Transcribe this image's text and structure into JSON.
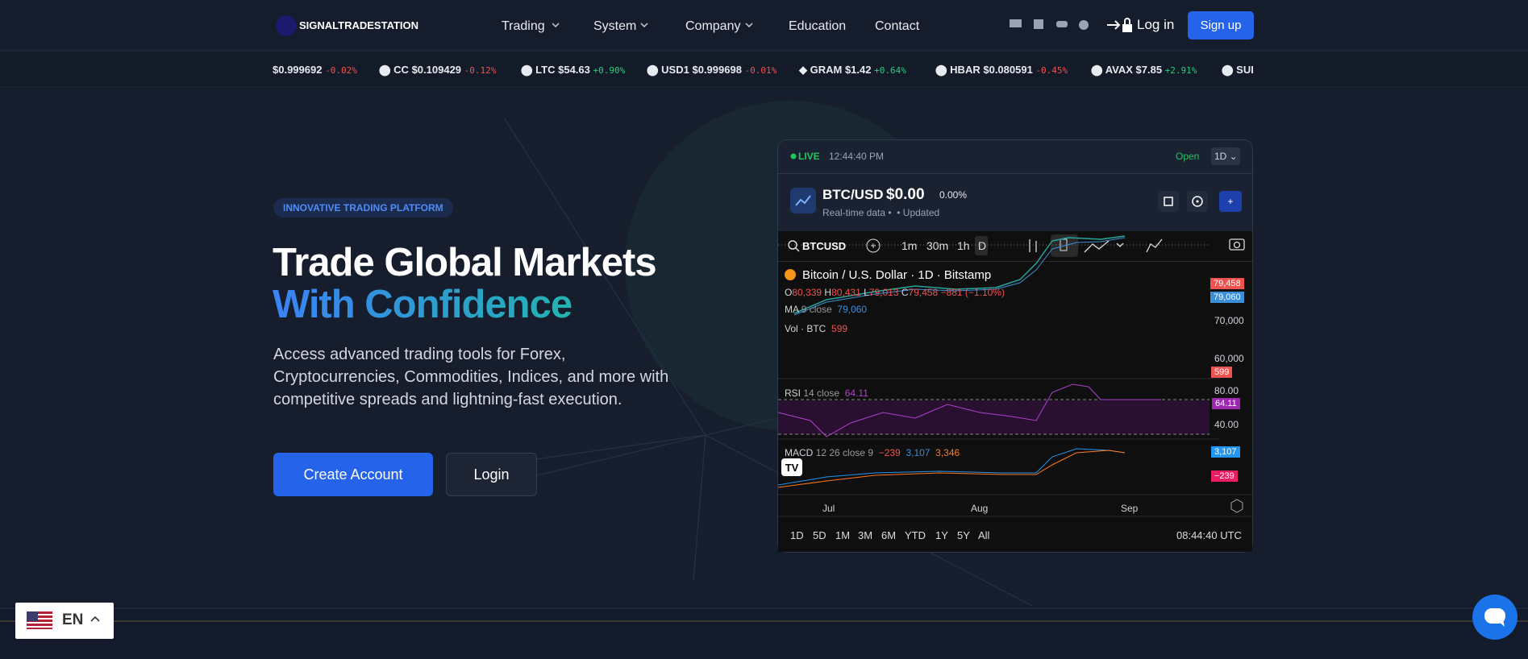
{
  "header": {
    "logo": "SIGNALTRADESTATION",
    "nav": [
      "Trading",
      "System",
      "Company",
      "Education",
      "Contact"
    ],
    "login": "Log in",
    "signup": "Sign up"
  },
  "ticker": [
    {
      "symbol": "",
      "price": "$0.999692",
      "change": "-0.02%"
    },
    {
      "symbol": "CC",
      "price": "$0.109429",
      "change": "-0.12%"
    },
    {
      "symbol": "LTC",
      "price": "$54.63",
      "change": "+0.90%"
    },
    {
      "symbol": "USD1",
      "price": "$0.999698",
      "change": "-0.01%"
    },
    {
      "symbol": "GRAM",
      "price": "$1.42",
      "change": "+0.64%"
    },
    {
      "symbol": "HBAR",
      "price": "$0.080591",
      "change": "-0.45%"
    },
    {
      "symbol": "AVAX",
      "price": "$7.85",
      "change": "+2.91%"
    },
    {
      "symbol": "SUI",
      "price": "",
      "change": ""
    }
  ],
  "hero": {
    "badge": "INNOVATIVE TRADING PLATFORM",
    "title_line1": "Trade Global Markets",
    "title_line2": "With Confidence",
    "description": "Access advanced trading tools for Forex, Cryptocurrencies, Commodities, Indices, and more with competitive spreads and lightning-fast execution.",
    "primary_button": "Create Account",
    "secondary_button": "Login"
  },
  "widget": {
    "live": "LIVE",
    "time": "12:44:40 PM",
    "status": "Open",
    "interval": "1D",
    "pair": "BTC/USD",
    "price": "$0.00",
    "change": "0.00%",
    "subtitle": "Real-time data",
    "updated": "Updated",
    "search": "BTCUSD",
    "intervals": [
      "1m",
      "30m",
      "1h",
      "D"
    ],
    "legend": "Bitcoin / U.S. Dollar · 1D · Bitstamp",
    "ohlc": {
      "o_label": "O",
      "o": "80,339",
      "h_label": "H",
      "h": "80,431",
      "l_label": "L",
      "l": "79,013",
      "c_label": "C",
      "c": "79,458",
      "change": "−881 (−1.10%)"
    },
    "ma_label": "MA",
    "ma_params": "9 close",
    "ma_value": "79,060",
    "vol_label": "Vol · BTC",
    "vol_value": "599",
    "price_badges": [
      "79,458",
      "79,060",
      "599"
    ],
    "price_axis": [
      "70,000",
      "60,000"
    ],
    "rsi_label": "RSI",
    "rsi_params": "14 close",
    "rsi_value": "64.11",
    "rsi_axis": [
      "80.00",
      "40.00"
    ],
    "rsi_badge": "64.11",
    "macd_label": "MACD",
    "macd_params": "12 26 close 9",
    "macd_values": [
      "−239",
      "3,107",
      "3,346"
    ],
    "macd_badges": [
      "3,107",
      "−239"
    ],
    "months": [
      "Jul",
      "Aug",
      "Sep"
    ],
    "ranges": [
      "1D",
      "5D",
      "1M",
      "3M",
      "6M",
      "YTD",
      "1Y",
      "5Y",
      "All"
    ],
    "clock": "08:44:40 UTC"
  },
  "language": "EN"
}
